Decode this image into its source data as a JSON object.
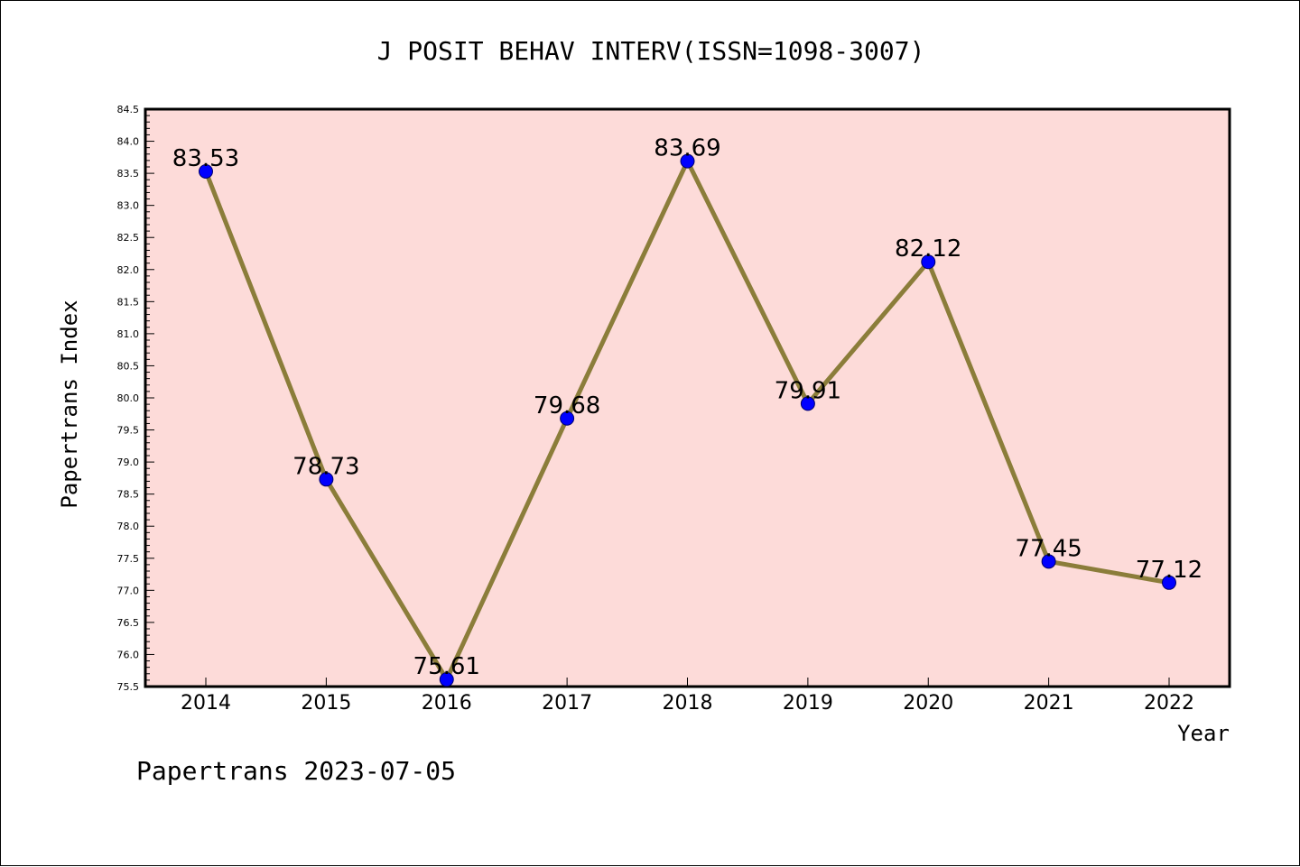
{
  "chart_data": {
    "type": "line",
    "title": "J POSIT BEHAV INTERV(ISSN=1098-3007)",
    "xlabel": "Year",
    "ylabel": "Papertrans Index",
    "categories": [
      "2014",
      "2015",
      "2016",
      "2017",
      "2018",
      "2019",
      "2020",
      "2021",
      "2022"
    ],
    "series": [
      {
        "values": [
          83.53,
          78.73,
          75.61,
          79.68,
          83.69,
          79.91,
          82.12,
          77.45,
          77.12
        ]
      }
    ],
    "data_labels": [
      "83.53",
      "78.73",
      "75.61",
      "79.68",
      "83.69",
      "79.91",
      "82.12",
      "77.45",
      "77.12"
    ],
    "ylim": [
      75.5,
      84.5
    ],
    "ytick_step": 0.5,
    "ytick_labels": [
      "75.5",
      "76.0",
      "76.5",
      "77.0",
      "77.5",
      "78.0",
      "78.5",
      "79.0",
      "79.5",
      "80.0",
      "80.5",
      "81.0",
      "81.5",
      "82.0",
      "82.5",
      "83.0",
      "83.5",
      "84.0",
      "84.5"
    ],
    "grid": false,
    "colors": {
      "plot_background": "#fddbd9",
      "line": "#8b7d3a",
      "marker": "#0000ff",
      "marker_edge": "#00006b"
    }
  },
  "footer": {
    "text": "Papertrans 2023-07-05"
  }
}
